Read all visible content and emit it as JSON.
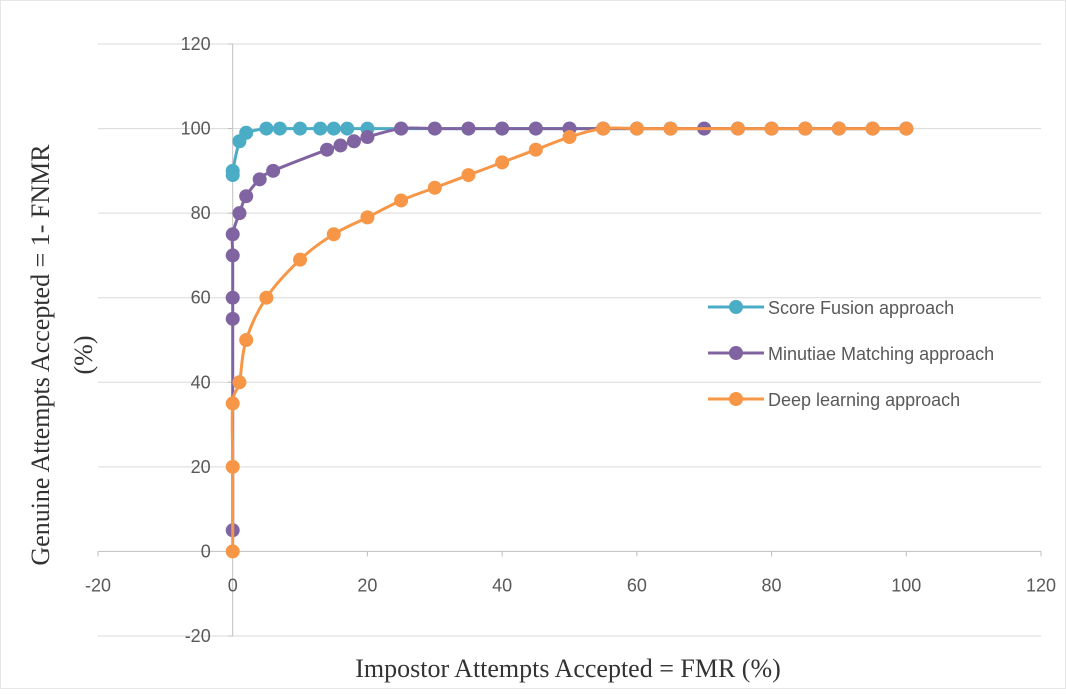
{
  "chart_data": {
    "type": "scatter",
    "title": "",
    "xlabel": "Impostor Attempts Accepted = FMR (%)",
    "ylabel_line1": "Genuine Attempts Accepted = 1- FNMR",
    "ylabel_line2": "(%)",
    "xlim": [
      -20,
      120
    ],
    "ylim": [
      -20,
      120
    ],
    "x_ticks": [
      -20,
      0,
      20,
      40,
      60,
      80,
      100,
      120
    ],
    "y_ticks": [
      -20,
      0,
      20,
      40,
      60,
      80,
      100,
      120
    ],
    "grid": "horizontal",
    "legend_position": "right",
    "series": [
      {
        "name": "Score Fusion approach",
        "color": "#4BACC6",
        "points": [
          [
            0,
            89
          ],
          [
            0,
            90
          ],
          [
            1,
            97
          ],
          [
            2,
            99
          ],
          [
            5,
            100
          ],
          [
            7,
            100
          ],
          [
            10,
            100
          ],
          [
            13,
            100
          ],
          [
            15,
            100
          ],
          [
            17,
            100
          ],
          [
            20,
            100
          ],
          [
            25,
            100
          ],
          [
            30,
            100
          ],
          [
            35,
            100
          ],
          [
            40,
            100
          ],
          [
            45,
            100
          ],
          [
            50,
            100
          ],
          [
            55,
            100
          ],
          [
            60,
            100
          ],
          [
            65,
            100
          ],
          [
            70,
            100
          ],
          [
            75,
            100
          ],
          [
            80,
            100
          ],
          [
            85,
            100
          ],
          [
            90,
            100
          ],
          [
            95,
            100
          ],
          [
            100,
            100
          ]
        ]
      },
      {
        "name": "Minutiae Matching approach",
        "color": "#8064A2",
        "points": [
          [
            0,
            5
          ],
          [
            0,
            55
          ],
          [
            0,
            60
          ],
          [
            0,
            70
          ],
          [
            0,
            75
          ],
          [
            1,
            80
          ],
          [
            2,
            84
          ],
          [
            4,
            88
          ],
          [
            6,
            90
          ],
          [
            14,
            95
          ],
          [
            16,
            96
          ],
          [
            18,
            97
          ],
          [
            20,
            98
          ],
          [
            25,
            100
          ],
          [
            30,
            100
          ],
          [
            35,
            100
          ],
          [
            40,
            100
          ],
          [
            45,
            100
          ],
          [
            50,
            100
          ],
          [
            55,
            100
          ],
          [
            60,
            100
          ],
          [
            65,
            100
          ],
          [
            70,
            100
          ],
          [
            75,
            100
          ],
          [
            80,
            100
          ],
          [
            85,
            100
          ],
          [
            90,
            100
          ],
          [
            95,
            100
          ],
          [
            100,
            100
          ]
        ]
      },
      {
        "name": "Deep learning approach",
        "color": "#F79646",
        "points": [
          [
            0,
            0
          ],
          [
            0,
            20
          ],
          [
            0,
            35
          ],
          [
            1,
            40
          ],
          [
            2,
            50
          ],
          [
            5,
            60
          ],
          [
            10,
            69
          ],
          [
            15,
            75
          ],
          [
            20,
            79
          ],
          [
            25,
            83
          ],
          [
            30,
            86
          ],
          [
            35,
            89
          ],
          [
            40,
            92
          ],
          [
            45,
            95
          ],
          [
            50,
            98
          ],
          [
            55,
            100
          ],
          [
            60,
            100
          ],
          [
            65,
            100
          ],
          [
            75,
            100
          ],
          [
            80,
            100
          ],
          [
            85,
            100
          ],
          [
            90,
            100
          ],
          [
            95,
            100
          ],
          [
            100,
            100
          ]
        ]
      }
    ]
  }
}
